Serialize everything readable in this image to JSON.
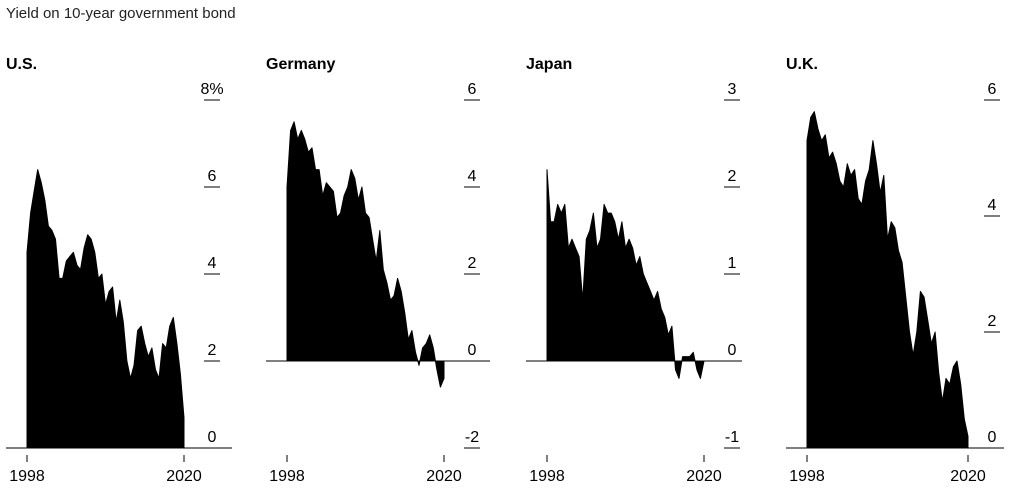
{
  "subtitle": "Yield on 10-year government bond",
  "chart_data": [
    {
      "type": "area",
      "title": "U.S.",
      "ylim": [
        0,
        8
      ],
      "yticks": [
        0,
        2,
        4,
        6,
        8
      ],
      "ytick_labels": [
        "0",
        "2",
        "4",
        "6",
        "8%"
      ],
      "xticks": [
        1998,
        2020
      ],
      "x": [
        1998,
        1998.5,
        1999,
        1999.5,
        2000,
        2000.5,
        2001,
        2001.5,
        2002,
        2002.5,
        2003,
        2003.5,
        2004,
        2004.5,
        2005,
        2005.5,
        2006,
        2006.5,
        2007,
        2007.5,
        2008,
        2008.5,
        2009,
        2009.5,
        2010,
        2010.5,
        2011,
        2011.5,
        2012,
        2012.5,
        2013,
        2013.5,
        2014,
        2014.5,
        2015,
        2015.5,
        2016,
        2016.5,
        2017,
        2017.5,
        2018,
        2018.5,
        2019,
        2019.5,
        2020
      ],
      "values": [
        4.5,
        5.4,
        5.9,
        6.4,
        6.1,
        5.7,
        5.1,
        5.0,
        4.8,
        3.9,
        3.9,
        4.3,
        4.4,
        4.5,
        4.2,
        4.1,
        4.6,
        4.9,
        4.8,
        4.5,
        3.9,
        4.0,
        3.3,
        3.6,
        3.7,
        2.9,
        3.4,
        2.9,
        2.0,
        1.6,
        1.9,
        2.7,
        2.8,
        2.4,
        2.1,
        2.3,
        1.8,
        1.6,
        2.4,
        2.3,
        2.8,
        3.0,
        2.4,
        1.7,
        0.7
      ]
    },
    {
      "type": "area",
      "title": "Germany",
      "ylim": [
        -2,
        6
      ],
      "yticks": [
        -2,
        0,
        2,
        4,
        6
      ],
      "ytick_labels": [
        "-2",
        "0",
        "2",
        "4",
        "6"
      ],
      "xticks": [
        1998,
        2020
      ],
      "x": [
        1998,
        1998.5,
        1999,
        1999.5,
        2000,
        2000.5,
        2001,
        2001.5,
        2002,
        2002.5,
        2003,
        2003.5,
        2004,
        2004.5,
        2005,
        2005.5,
        2006,
        2006.5,
        2007,
        2007.5,
        2008,
        2008.5,
        2009,
        2009.5,
        2010,
        2010.5,
        2011,
        2011.5,
        2012,
        2012.5,
        2013,
        2013.5,
        2014,
        2014.5,
        2015,
        2015.5,
        2016,
        2016.5,
        2017,
        2017.5,
        2018,
        2018.5,
        2019,
        2019.5,
        2020
      ],
      "values": [
        4.0,
        5.3,
        5.5,
        5.1,
        5.3,
        5.1,
        4.8,
        4.9,
        4.4,
        4.4,
        3.8,
        4.1,
        4.0,
        3.9,
        3.3,
        3.4,
        3.8,
        4.0,
        4.4,
        4.2,
        3.7,
        4.0,
        3.4,
        3.3,
        2.8,
        2.3,
        3.0,
        2.1,
        1.8,
        1.4,
        1.5,
        1.9,
        1.6,
        1.1,
        0.5,
        0.7,
        0.2,
        -0.1,
        0.3,
        0.4,
        0.6,
        0.3,
        -0.2,
        -0.6,
        -0.4
      ]
    },
    {
      "type": "area",
      "title": "Japan",
      "ylim": [
        -1,
        3
      ],
      "yticks": [
        -1,
        0,
        1,
        2,
        3
      ],
      "ytick_labels": [
        "-1",
        "0",
        "1",
        "2",
        "3"
      ],
      "xticks": [
        1998,
        2020
      ],
      "x": [
        1998,
        1998.5,
        1999,
        1999.5,
        2000,
        2000.5,
        2001,
        2001.5,
        2002,
        2002.5,
        2003,
        2003.5,
        2004,
        2004.5,
        2005,
        2005.5,
        2006,
        2006.5,
        2007,
        2007.5,
        2008,
        2008.5,
        2009,
        2009.5,
        2010,
        2010.5,
        2011,
        2011.5,
        2012,
        2012.5,
        2013,
        2013.5,
        2014,
        2014.5,
        2015,
        2015.5,
        2016,
        2016.5,
        2017,
        2017.5,
        2018,
        2018.5,
        2019,
        2019.5,
        2020
      ],
      "values": [
        2.2,
        1.6,
        1.6,
        1.8,
        1.7,
        1.8,
        1.3,
        1.4,
        1.3,
        1.2,
        0.7,
        1.4,
        1.5,
        1.7,
        1.3,
        1.4,
        1.8,
        1.7,
        1.7,
        1.6,
        1.4,
        1.6,
        1.3,
        1.4,
        1.3,
        1.1,
        1.2,
        1.0,
        0.9,
        0.8,
        0.7,
        0.8,
        0.6,
        0.5,
        0.3,
        0.4,
        -0.1,
        -0.2,
        0.05,
        0.05,
        0.05,
        0.1,
        -0.1,
        -0.2,
        0.0
      ]
    },
    {
      "type": "area",
      "title": "U.K.",
      "ylim": [
        0,
        6
      ],
      "yticks": [
        0,
        2,
        4,
        6
      ],
      "ytick_labels": [
        "0",
        "2",
        "4",
        "6"
      ],
      "xticks": [
        1998,
        2020
      ],
      "x": [
        1998,
        1998.5,
        1999,
        1999.5,
        2000,
        2000.5,
        2001,
        2001.5,
        2002,
        2002.5,
        2003,
        2003.5,
        2004,
        2004.5,
        2005,
        2005.5,
        2006,
        2006.5,
        2007,
        2007.5,
        2008,
        2008.5,
        2009,
        2009.5,
        2010,
        2010.5,
        2011,
        2011.5,
        2012,
        2012.5,
        2013,
        2013.5,
        2014,
        2014.5,
        2015,
        2015.5,
        2016,
        2016.5,
        2017,
        2017.5,
        2018,
        2018.5,
        2019,
        2019.5,
        2020
      ],
      "values": [
        5.3,
        5.7,
        5.8,
        5.5,
        5.3,
        5.4,
        5.0,
        5.1,
        4.9,
        4.6,
        4.5,
        4.9,
        4.7,
        4.8,
        4.3,
        4.2,
        4.6,
        4.8,
        5.3,
        4.9,
        4.4,
        4.7,
        3.6,
        3.9,
        3.8,
        3.4,
        3.2,
        2.6,
        2.0,
        1.6,
        2.0,
        2.7,
        2.6,
        2.2,
        1.8,
        2.0,
        1.3,
        0.8,
        1.2,
        1.1,
        1.4,
        1.5,
        1.1,
        0.5,
        0.2
      ]
    }
  ]
}
